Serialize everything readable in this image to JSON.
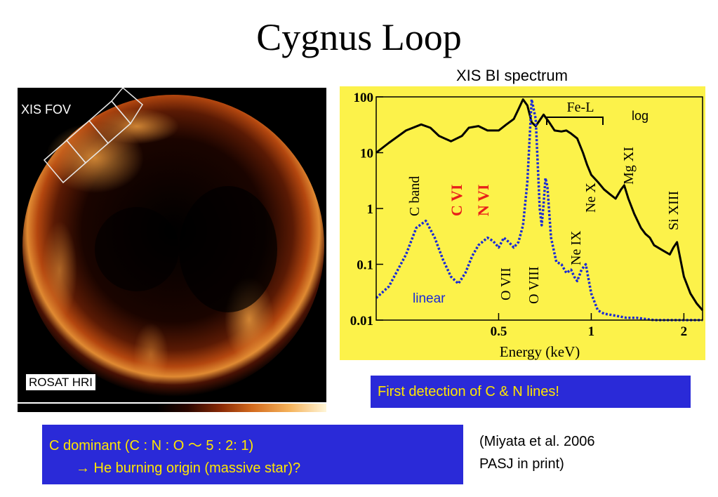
{
  "title": "Cygnus Loop",
  "image_panel": {
    "fov_label": "XIS FOV",
    "instrument_label": "ROSAT HRI"
  },
  "chart_data": {
    "type": "line",
    "title": "XIS BI spectrum",
    "xlabel": "Energy (keV)",
    "ylabel": "",
    "x_scale": "log",
    "y_scale": "log",
    "xlim": [
      0.2,
      2.3
    ],
    "ylim": [
      0.01,
      100
    ],
    "x_ticks": [
      {
        "value": 0.5,
        "label": "0.5"
      },
      {
        "value": 1,
        "label": "1"
      },
      {
        "value": 2,
        "label": "2"
      }
    ],
    "y_ticks": [
      {
        "value": 100,
        "label": "100"
      },
      {
        "value": 10,
        "label": "10"
      },
      {
        "value": 1,
        "label": "1"
      },
      {
        "value": 0.1,
        "label": "0.1"
      },
      {
        "value": 0.01,
        "label": "0.01"
      }
    ],
    "series": [
      {
        "name": "log",
        "color": "#000000",
        "style": "solid",
        "x": [
          0.2,
          0.22,
          0.25,
          0.28,
          0.3,
          0.32,
          0.35,
          0.38,
          0.4,
          0.43,
          0.46,
          0.5,
          0.53,
          0.56,
          0.58,
          0.6,
          0.62,
          0.64,
          0.66,
          0.68,
          0.7,
          0.73,
          0.76,
          0.8,
          0.83,
          0.86,
          0.9,
          0.94,
          0.97,
          1.0,
          1.05,
          1.1,
          1.15,
          1.2,
          1.25,
          1.28,
          1.32,
          1.38,
          1.45,
          1.5,
          1.55,
          1.6,
          1.7,
          1.8,
          1.85,
          1.9,
          2.0,
          2.1,
          2.2,
          2.3
        ],
        "y": [
          10,
          15,
          25,
          32,
          28,
          20,
          16,
          20,
          28,
          30,
          25,
          25,
          32,
          40,
          60,
          90,
          70,
          35,
          30,
          38,
          48,
          35,
          25,
          24,
          25,
          22,
          18,
          10,
          6,
          4,
          3,
          2.2,
          1.8,
          1.5,
          2.2,
          2.6,
          1.5,
          0.8,
          0.45,
          0.35,
          0.3,
          0.22,
          0.18,
          0.15,
          0.2,
          0.25,
          0.06,
          0.03,
          0.02,
          0.015
        ]
      },
      {
        "name": "linear",
        "color": "#1a2ad6",
        "style": "dashed",
        "x": [
          0.2,
          0.22,
          0.25,
          0.27,
          0.29,
          0.31,
          0.33,
          0.35,
          0.37,
          0.39,
          0.41,
          0.43,
          0.46,
          0.48,
          0.5,
          0.52,
          0.54,
          0.56,
          0.58,
          0.6,
          0.62,
          0.64,
          0.66,
          0.68,
          0.69,
          0.7,
          0.71,
          0.72,
          0.74,
          0.77,
          0.8,
          0.83,
          0.86,
          0.88,
          0.9,
          0.93,
          0.96,
          1.0,
          1.05,
          1.1,
          1.2,
          1.3,
          1.4,
          1.6,
          1.8,
          2.0,
          2.3
        ],
        "y": [
          0.025,
          0.04,
          0.15,
          0.45,
          0.6,
          0.3,
          0.12,
          0.06,
          0.045,
          0.07,
          0.14,
          0.22,
          0.3,
          0.26,
          0.2,
          0.3,
          0.25,
          0.2,
          0.25,
          0.5,
          3,
          90,
          40,
          1,
          0.5,
          1.2,
          3.5,
          2.5,
          0.3,
          0.11,
          0.1,
          0.07,
          0.08,
          0.06,
          0.05,
          0.08,
          0.1,
          0.03,
          0.015,
          0.013,
          0.012,
          0.011,
          0.011,
          0.01,
          0.01,
          0.01,
          0.01
        ]
      }
    ],
    "annotations": {
      "fe_l": "Fe-L",
      "log": "log",
      "linear": "linear",
      "c_band": "C band",
      "c_vi": "C VI",
      "n_vi": "N VI",
      "o_vii": "O VII",
      "o_viii": "O VIII",
      "ne_ix": "Ne IX",
      "ne_x": "Ne X",
      "mg_xi": "Mg XI",
      "si_xiii": "Si XIII"
    },
    "colors": {
      "background": "#fcf24a",
      "emphasis": "#e8201a"
    }
  },
  "callouts": {
    "detection": "First detection of C & N lines!",
    "dominant_line1": "C dominant (C : N : O ～ 5 : 2: 1)",
    "dominant_line2": "→ He burning origin (massive star)?",
    "reference_line1": "(Miyata et al. 2006",
    "reference_line2": "PASJ in print)"
  }
}
